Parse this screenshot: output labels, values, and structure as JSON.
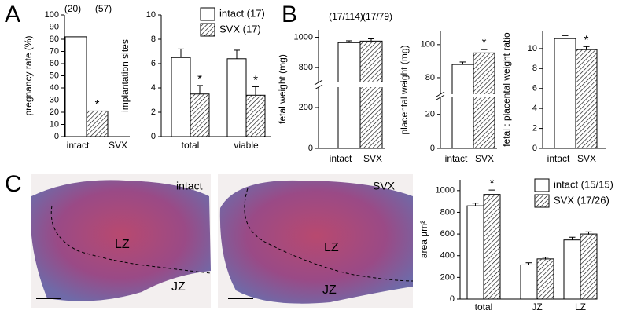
{
  "panels": [
    "A",
    "B",
    "C"
  ],
  "chart_data": [
    {
      "type": "bar",
      "ylabel": "pregnancy rate (%)",
      "categories": [
        "intact",
        "SVX"
      ],
      "values": [
        82,
        21
      ],
      "colors": [
        "#ffffff",
        "#ffffff"
      ],
      "hatch": [
        false,
        true
      ],
      "counts": [
        "(20)",
        "(57)"
      ],
      "annotations": [
        null,
        "*"
      ],
      "ylim": [
        0,
        100
      ],
      "yticks": [
        0,
        10,
        20,
        30,
        40,
        50,
        60,
        70,
        80,
        90,
        100
      ]
    },
    {
      "type": "grouped_bar",
      "ylabel": "implantation sites",
      "categories": [
        "total",
        "viable"
      ],
      "series": [
        {
          "name": "intact (17)",
          "color": "#ffffff",
          "hatch": false,
          "values": [
            6.5,
            6.4
          ],
          "errors": [
            0.7,
            0.7
          ],
          "annotations": [
            null,
            null
          ]
        },
        {
          "name": "SVX (17)",
          "color": "#ffffff",
          "hatch": true,
          "values": [
            3.5,
            3.4
          ],
          "errors": [
            0.7,
            0.7
          ],
          "annotations": [
            "*",
            "*"
          ]
        }
      ],
      "ylim": [
        0,
        10
      ],
      "yticks": [
        0,
        2,
        4,
        6,
        8,
        10
      ],
      "legend": "top-right"
    },
    {
      "type": "bar",
      "ylabel": "fetal weight (mg)",
      "categories": [
        "intact",
        "SVX"
      ],
      "values": [
        965,
        975
      ],
      "errors": [
        12,
        15
      ],
      "colors": [
        "#ffffff",
        "#ffffff"
      ],
      "hatch": [
        false,
        true
      ],
      "counts": [
        "(17/114)",
        "(17/79)"
      ],
      "annotations": [
        null,
        null
      ],
      "ysegments": [
        {
          "ylim": [
            0,
            300
          ],
          "yticks": [
            0,
            200
          ]
        },
        {
          "ylim": [
            700,
            1050
          ],
          "yticks": [
            800,
            1000
          ]
        }
      ]
    },
    {
      "type": "bar",
      "ylabel": "placental weight (mg)",
      "categories": [
        "intact",
        "SVX"
      ],
      "values": [
        88,
        95
      ],
      "errors": [
        1.5,
        2
      ],
      "colors": [
        "#ffffff",
        "#ffffff"
      ],
      "hatch": [
        false,
        true
      ],
      "annotations": [
        null,
        "*"
      ],
      "ysegments": [
        {
          "ylim": [
            0,
            30
          ],
          "yticks": [
            0,
            20
          ]
        },
        {
          "ylim": [
            70,
            108
          ],
          "yticks": [
            80,
            100
          ]
        }
      ]
    },
    {
      "type": "bar",
      "ylabel": "fetal : placental weight ratio",
      "categories": [
        "intact",
        "SVX"
      ],
      "values": [
        11.0,
        9.9
      ],
      "errors": [
        0.3,
        0.3
      ],
      "colors": [
        "#ffffff",
        "#ffffff"
      ],
      "hatch": [
        false,
        true
      ],
      "annotations": [
        null,
        "*"
      ],
      "ylim": [
        0,
        11.8
      ],
      "yticks": [
        0,
        2,
        4,
        6,
        8,
        10
      ]
    },
    {
      "type": "grouped_bar",
      "ylabel": "area µm²",
      "categories": [
        "total",
        "JZ",
        "LZ"
      ],
      "series": [
        {
          "name": "intact (15/15)",
          "color": "#ffffff",
          "hatch": false,
          "values": [
            860,
            315,
            545
          ],
          "errors": [
            25,
            20,
            25
          ],
          "annotations": [
            null,
            null,
            null
          ]
        },
        {
          "name": "SVX (17/26)",
          "color": "#ffffff",
          "hatch": true,
          "values": [
            965,
            370,
            600
          ],
          "errors": [
            40,
            15,
            20
          ],
          "annotations": [
            "*",
            null,
            null
          ]
        }
      ],
      "ylim": [
        0,
        1100
      ],
      "yticks": [
        0,
        200,
        400,
        600,
        800,
        1000
      ],
      "legend": "top-right"
    }
  ],
  "images": [
    {
      "label": "intact",
      "regions": [
        "LZ",
        "JZ"
      ]
    },
    {
      "label": "SVX",
      "regions": [
        "LZ",
        "JZ"
      ]
    }
  ]
}
